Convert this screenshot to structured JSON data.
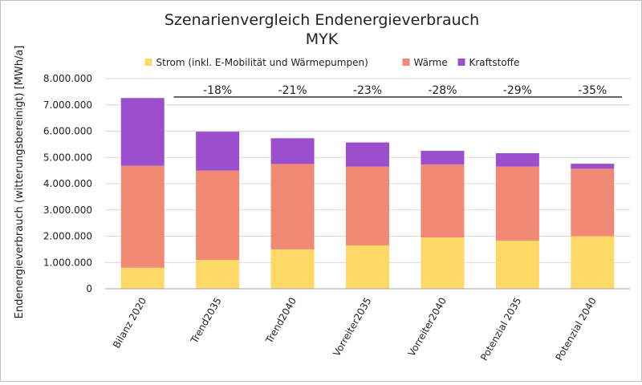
{
  "chart_data": {
    "type": "bar",
    "stacked": true,
    "title": "Szenarienvergleich  Endenergieverbrauch",
    "subtitle": "MYK",
    "xlabel": "",
    "ylabel": "Endenergieverbrauch (witterungsbereinigt) [MWh/a]",
    "ylim": [
      0,
      8000000
    ],
    "yticks": [
      "0",
      "1.000.000",
      "2.000.000",
      "3.000.000",
      "4.000.000",
      "5.000.000",
      "6.000.000",
      "7.000.000",
      "8.000.000"
    ],
    "grid": true,
    "legend_position": "top",
    "categories": [
      "Bilanz 2020",
      "Trend2035",
      "Trend2040",
      "Vorreiter2035",
      "Vorreiter2040",
      "Potenzial 2035",
      "Potenzial 2040"
    ],
    "series": [
      {
        "name": "Strom (inkl. E-Mobilität und Wärmepumpen)",
        "color": "#FFD966",
        "values": [
          800000,
          1100000,
          1500000,
          1650000,
          1950000,
          1830000,
          2000000
        ]
      },
      {
        "name": "Wärme",
        "color": "#F08A75",
        "values": [
          3880000,
          3400000,
          3250000,
          3000000,
          2780000,
          2820000,
          2570000
        ]
      },
      {
        "name": "Kraftstoffe",
        "color": "#9B4FCD",
        "values": [
          2580000,
          1480000,
          980000,
          920000,
          520000,
          510000,
          190000
        ]
      }
    ],
    "annotations": [
      "",
      "-18%",
      "-21%",
      "-23%",
      "-28%",
      "-29%",
      "-35%"
    ],
    "reference_line": 7300000
  }
}
